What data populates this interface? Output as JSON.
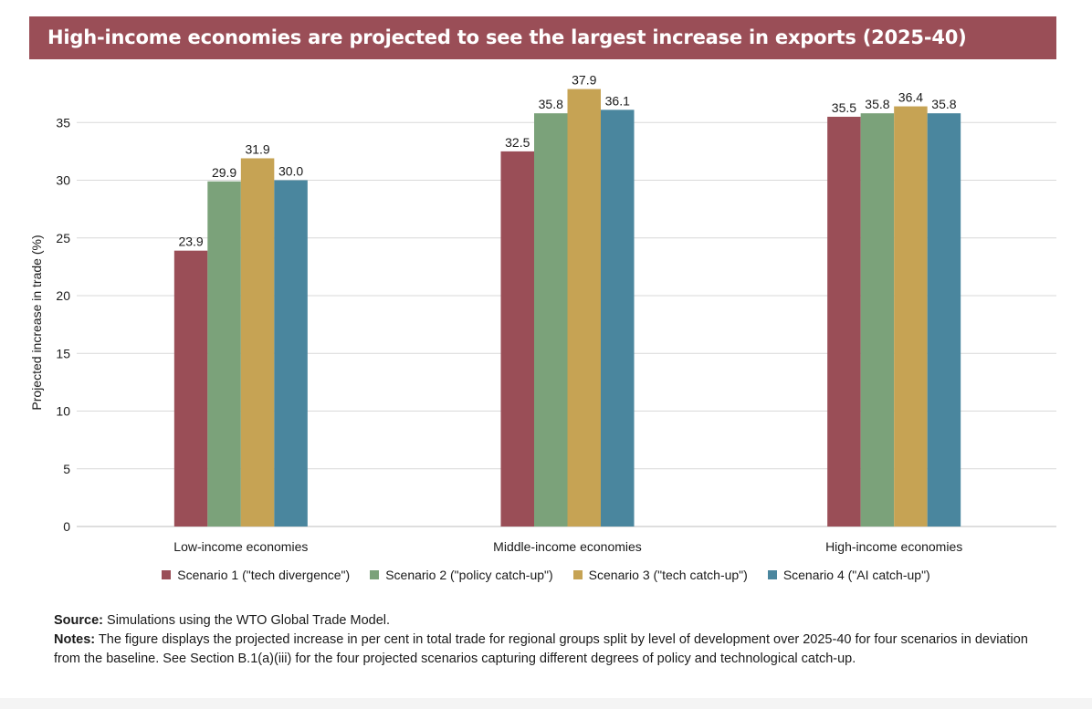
{
  "header": {
    "title": "High-income economies are projected to see the largest increase in exports (2025-40)"
  },
  "colors": {
    "title_bar": "#9a4e57",
    "scenario_1": "#9a4e57",
    "scenario_2": "#7ba27a",
    "scenario_3": "#c6a354",
    "scenario_4": "#4a869e",
    "grid": "#d9d9d9"
  },
  "chart_data": {
    "type": "bar",
    "title": "High-income economies are projected to see the largest increase in exports (2025-40)",
    "xlabel": "",
    "ylabel": "Projected increase in trade (%)",
    "ylim": [
      0,
      38.5
    ],
    "yticks": [
      0,
      5,
      10,
      15,
      20,
      25,
      30,
      35
    ],
    "grid": true,
    "legend_position": "bottom",
    "categories": [
      "Low-income economies",
      "Middle-income economies",
      "High-income economies"
    ],
    "series": [
      {
        "name": "Scenario 1 (\"tech divergence\")",
        "values": [
          23.9,
          32.5,
          35.5
        ],
        "labels": [
          "23.9",
          "32.5",
          "35.5"
        ]
      },
      {
        "name": "Scenario 2 (\"policy catch-up\")",
        "values": [
          29.9,
          35.8,
          35.8
        ],
        "labels": [
          "29.9",
          "35.8",
          "35.8"
        ]
      },
      {
        "name": "Scenario 3 (\"tech catch-up\")",
        "values": [
          31.9,
          37.9,
          36.4
        ],
        "labels": [
          "31.9",
          "37.9",
          "36.4"
        ]
      },
      {
        "name": "Scenario 4 (\"AI catch-up\")",
        "values": [
          30.0,
          36.1,
          35.8
        ],
        "labels": [
          "30.0",
          "36.1",
          "35.8"
        ]
      }
    ]
  },
  "footnotes": {
    "source_label": "Source:",
    "source_text": " Simulations using the WTO Global Trade Model.",
    "notes_label": "Notes:",
    "notes_text": " The figure displays the projected increase in per cent in total trade for regional groups split by level of development over 2025-40 for four scenarios in deviation from the baseline. See Section B.1(a)(iii) for the four projected scenarios capturing different degrees of policy and technological catch-up."
  }
}
